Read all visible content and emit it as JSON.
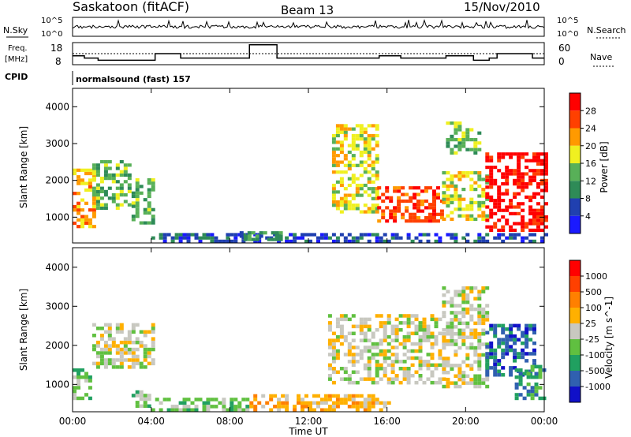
{
  "header": {
    "station": "Saskatoon (fitACF)",
    "beam": "Beam 13",
    "date": "15/Nov/2010"
  },
  "panels": {
    "nsky_label": "N.Sky",
    "nsearch_label": "N.Search",
    "nsky_tick_top": "10^5",
    "nsky_tick_bottom": "10^0",
    "nsearch_tick_top": "10^5",
    "nsearch_tick_bottom": "10^0",
    "freq_label": "Freq.",
    "freq_unit": "[MHz]",
    "freq_tick_top": "18",
    "freq_tick_bottom": "8",
    "nave_label": "Nave",
    "nave_tick_top": "60",
    "nave_tick_bottom": "0",
    "cpid_label": "CPID",
    "cpid_value": "normalsound (fast) 157"
  },
  "colors": {
    "power": [
      "#1a1aff",
      "#2040b0",
      "#2e8b57",
      "#58b058",
      "#f0f020",
      "#ff9a00",
      "#ff4000",
      "#ff0000"
    ],
    "velocity": [
      "#1010c8",
      "#3060b0",
      "#20a060",
      "#60c040",
      "#c8c8c0",
      "#ffb000",
      "#ff8000",
      "#ff4000",
      "#ff0000"
    ],
    "frame": "#000000"
  },
  "chart_data": [
    {
      "type": "heatmap",
      "name": "power",
      "ylabel": "Slant Range [km]",
      "yticks": [
        "1000",
        "2000",
        "3000",
        "4000"
      ],
      "ylim": [
        300,
        4500
      ],
      "colorbar_label": "Power [dB]",
      "colorbar_ticks": [
        "4",
        "8",
        "12",
        "16",
        "20",
        "24",
        "28"
      ],
      "xticks": [
        "00:00",
        "04:00",
        "08:00",
        "12:00",
        "16:00",
        "20:00",
        "00:00"
      ],
      "xlim_hours": [
        0,
        24
      ],
      "echo_regions": [
        {
          "t0": 0.0,
          "t1": 1.2,
          "r0": 700,
          "r1": 2300,
          "level": 5
        },
        {
          "t0": 1.0,
          "t1": 3.0,
          "r0": 1200,
          "r1": 2500,
          "level": 3
        },
        {
          "t0": 3.0,
          "t1": 4.2,
          "r0": 800,
          "r1": 2000,
          "level": 3
        },
        {
          "t0": 4.0,
          "t1": 24.0,
          "r0": 300,
          "r1": 550,
          "level": 1
        },
        {
          "t0": 8.5,
          "t1": 10.5,
          "r0": 350,
          "r1": 600,
          "level": 2
        },
        {
          "t0": 13.2,
          "t1": 15.5,
          "r0": 1100,
          "r1": 3500,
          "level": 4
        },
        {
          "t0": 15.5,
          "t1": 18.8,
          "r0": 850,
          "r1": 1800,
          "level": 6
        },
        {
          "t0": 18.8,
          "t1": 21.0,
          "r0": 900,
          "r1": 2200,
          "level": 4
        },
        {
          "t0": 19.0,
          "t1": 20.7,
          "r0": 2700,
          "r1": 3600,
          "level": 3
        },
        {
          "t0": 21.0,
          "t1": 24.0,
          "r0": 600,
          "r1": 2700,
          "level": 7
        }
      ]
    },
    {
      "type": "heatmap",
      "name": "velocity",
      "ylabel": "Slant Range [km]",
      "yticks": [
        "1000",
        "2000",
        "3000",
        "4000"
      ],
      "ylim": [
        300,
        4500
      ],
      "xlabel": "Time UT",
      "colorbar_label": "Velocity [m s^-1]",
      "colorbar_ticks": [
        "1000",
        "500",
        "100",
        "25",
        "-25",
        "-100",
        "-500",
        "-1000"
      ],
      "xticks": [
        "00:00",
        "04:00",
        "08:00",
        "12:00",
        "16:00",
        "20:00",
        "00:00"
      ],
      "xlim_hours": [
        0,
        24
      ],
      "echo_regions": [
        {
          "t0": 0.0,
          "t1": 1.0,
          "r0": 600,
          "r1": 1400,
          "level": 3
        },
        {
          "t0": 1.0,
          "t1": 4.2,
          "r0": 1400,
          "r1": 2500,
          "level": 4
        },
        {
          "t0": 3.0,
          "t1": 4.0,
          "r0": 400,
          "r1": 800,
          "level": 3
        },
        {
          "t0": 4.0,
          "t1": 9.0,
          "r0": 300,
          "r1": 600,
          "level": 3
        },
        {
          "t0": 9.0,
          "t1": 16.0,
          "r0": 300,
          "r1": 700,
          "level": 5
        },
        {
          "t0": 13.0,
          "t1": 18.8,
          "r0": 1000,
          "r1": 2800,
          "level": 4
        },
        {
          "t0": 18.8,
          "t1": 21.0,
          "r0": 900,
          "r1": 3500,
          "level": 4
        },
        {
          "t0": 21.0,
          "t1": 23.5,
          "r0": 1200,
          "r1": 2500,
          "level": 1
        },
        {
          "t0": 22.5,
          "t1": 24.0,
          "r0": 600,
          "r1": 1500,
          "level": 2
        }
      ]
    }
  ]
}
